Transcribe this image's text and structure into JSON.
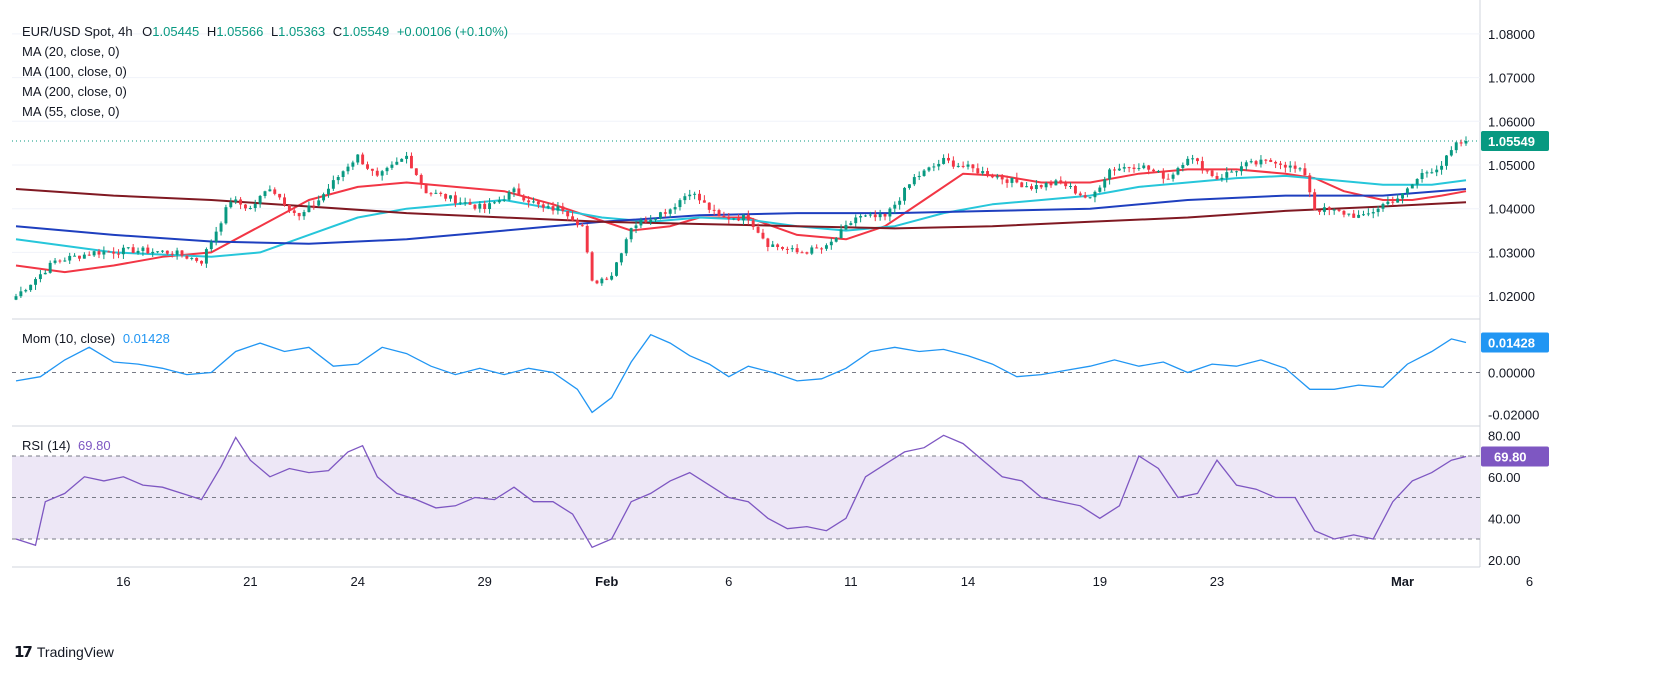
{
  "header": {
    "symbol": "EUR/USD Spot, 4h",
    "ohlc": {
      "o_label": "O",
      "o": "1.05445",
      "h_label": "H",
      "h": "1.05566",
      "l_label": "L",
      "l": "1.05363",
      "c_label": "C",
      "c": "1.05549",
      "change": "+0.00106 (+0.10%)"
    },
    "ma_legend": [
      "MA (20, close, 0)",
      "MA (100, close, 0)",
      "MA (200, close, 0)",
      "MA (55, close, 0)"
    ]
  },
  "colors": {
    "up": "#089981",
    "down": "#f23645",
    "ma20": "#f23645",
    "ma55": "#26c6da",
    "ma100": "#1e3fbf",
    "ma200": "#801922",
    "momentum": "#2196f3",
    "rsi": "#7e57c2",
    "rsi_band": "#ede7f6"
  },
  "chart_data": [
    {
      "type": "candlestick",
      "symbol": "EUR/USD Spot",
      "timeframe": "4h",
      "ylim": [
        1.015,
        1.085
      ],
      "y_ticks": [
        "1.02000",
        "1.03000",
        "1.04000",
        "1.05000",
        "1.06000",
        "1.07000",
        "1.08000"
      ],
      "last_price_label": "1.05549",
      "last_price": 1.05549,
      "x_ticks": [
        "16",
        "21",
        "24",
        "29",
        "Feb",
        "6",
        "11",
        "14",
        "19",
        "23",
        "Mar",
        "6"
      ],
      "price_path": [
        [
          0,
          1.02
        ],
        [
          8,
          1.028
        ],
        [
          16,
          1.03
        ],
        [
          24,
          1.0305
        ],
        [
          32,
          1.03
        ],
        [
          38,
          1.028
        ],
        [
          44,
          1.042
        ],
        [
          48,
          1.04
        ],
        [
          52,
          1.045
        ],
        [
          58,
          1.038
        ],
        [
          62,
          1.042
        ],
        [
          68,
          1.05
        ],
        [
          70,
          1.052
        ],
        [
          74,
          1.047
        ],
        [
          80,
          1.052
        ],
        [
          84,
          1.044
        ],
        [
          90,
          1.042
        ],
        [
          96,
          1.04
        ],
        [
          102,
          1.044
        ],
        [
          108,
          1.04
        ],
        [
          112,
          1.04
        ],
        [
          116,
          1.036
        ],
        [
          118,
          1.023
        ],
        [
          122,
          1.025
        ],
        [
          126,
          1.036
        ],
        [
          130,
          1.038
        ],
        [
          134,
          1.04
        ],
        [
          138,
          1.044
        ],
        [
          144,
          1.038
        ],
        [
          150,
          1.038
        ],
        [
          154,
          1.032
        ],
        [
          160,
          1.03
        ],
        [
          166,
          1.031
        ],
        [
          172,
          1.038
        ],
        [
          178,
          1.038
        ],
        [
          184,
          1.047
        ],
        [
          190,
          1.051
        ],
        [
          196,
          1.049
        ],
        [
          202,
          1.047
        ],
        [
          208,
          1.045
        ],
        [
          214,
          1.046
        ],
        [
          220,
          1.042
        ],
        [
          224,
          1.049
        ],
        [
          230,
          1.05
        ],
        [
          236,
          1.047
        ],
        [
          240,
          1.052
        ],
        [
          246,
          1.047
        ],
        [
          252,
          1.05
        ],
        [
          258,
          1.051
        ],
        [
          264,
          1.048
        ],
        [
          266,
          1.04
        ],
        [
          272,
          1.039
        ],
        [
          276,
          1.038
        ],
        [
          280,
          1.041
        ],
        [
          284,
          1.043
        ],
        [
          288,
          1.048
        ],
        [
          292,
          1.05
        ],
        [
          295,
          1.0545
        ],
        [
          297,
          1.0555
        ]
      ],
      "series": [
        {
          "name": "MA (20, close, 0)",
          "values": [
            [
              0,
              1.027
            ],
            [
              10,
              1.0255
            ],
            [
              20,
              1.027
            ],
            [
              30,
              1.029
            ],
            [
              40,
              1.03
            ],
            [
              50,
              1.036
            ],
            [
              60,
              1.042
            ],
            [
              70,
              1.045
            ],
            [
              80,
              1.046
            ],
            [
              90,
              1.045
            ],
            [
              100,
              1.044
            ],
            [
              110,
              1.041
            ],
            [
              118,
              1.038
            ],
            [
              126,
              1.035
            ],
            [
              134,
              1.036
            ],
            [
              140,
              1.038
            ],
            [
              150,
              1.038
            ],
            [
              160,
              1.034
            ],
            [
              170,
              1.033
            ],
            [
              178,
              1.036
            ],
            [
              186,
              1.042
            ],
            [
              194,
              1.048
            ],
            [
              202,
              1.0475
            ],
            [
              210,
              1.046
            ],
            [
              220,
              1.046
            ],
            [
              230,
              1.048
            ],
            [
              240,
              1.049
            ],
            [
              250,
              1.049
            ],
            [
              260,
              1.048
            ],
            [
              266,
              1.047
            ],
            [
              272,
              1.044
            ],
            [
              280,
              1.042
            ],
            [
              286,
              1.042
            ],
            [
              292,
              1.043
            ],
            [
              297,
              1.044
            ]
          ]
        },
        {
          "name": "MA (55, close, 0)",
          "values": [
            [
              0,
              1.033
            ],
            [
              20,
              1.03
            ],
            [
              40,
              1.029
            ],
            [
              50,
              1.03
            ],
            [
              60,
              1.034
            ],
            [
              70,
              1.038
            ],
            [
              80,
              1.04
            ],
            [
              90,
              1.041
            ],
            [
              100,
              1.042
            ],
            [
              110,
              1.04
            ],
            [
              120,
              1.038
            ],
            [
              130,
              1.037
            ],
            [
              140,
              1.038
            ],
            [
              150,
              1.0375
            ],
            [
              160,
              1.036
            ],
            [
              170,
              1.035
            ],
            [
              180,
              1.036
            ],
            [
              190,
              1.039
            ],
            [
              200,
              1.041
            ],
            [
              210,
              1.042
            ],
            [
              220,
              1.043
            ],
            [
              230,
              1.045
            ],
            [
              240,
              1.046
            ],
            [
              250,
              1.047
            ],
            [
              260,
              1.0475
            ],
            [
              270,
              1.0465
            ],
            [
              280,
              1.0455
            ],
            [
              290,
              1.0455
            ],
            [
              297,
              1.0465
            ]
          ]
        },
        {
          "name": "MA (100, close, 0)",
          "values": [
            [
              0,
              1.036
            ],
            [
              20,
              1.034
            ],
            [
              40,
              1.0325
            ],
            [
              60,
              1.032
            ],
            [
              80,
              1.033
            ],
            [
              100,
              1.035
            ],
            [
              120,
              1.037
            ],
            [
              140,
              1.0385
            ],
            [
              160,
              1.039
            ],
            [
              180,
              1.039
            ],
            [
              200,
              1.0395
            ],
            [
              220,
              1.04
            ],
            [
              240,
              1.042
            ],
            [
              260,
              1.043
            ],
            [
              280,
              1.043
            ],
            [
              297,
              1.0445
            ]
          ]
        },
        {
          "name": "MA (200, close, 0)",
          "values": [
            [
              0,
              1.0445
            ],
            [
              20,
              1.043
            ],
            [
              40,
              1.042
            ],
            [
              60,
              1.0405
            ],
            [
              80,
              1.039
            ],
            [
              100,
              1.038
            ],
            [
              120,
              1.037
            ],
            [
              140,
              1.0365
            ],
            [
              160,
              1.036
            ],
            [
              180,
              1.0355
            ],
            [
              200,
              1.036
            ],
            [
              220,
              1.037
            ],
            [
              240,
              1.038
            ],
            [
              260,
              1.0395
            ],
            [
              280,
              1.0405
            ],
            [
              297,
              1.0415
            ]
          ]
        }
      ]
    },
    {
      "type": "line",
      "name": "Mom (10, close)",
      "value_label": "0.01428",
      "ylim": [
        -0.025,
        0.025
      ],
      "y_ticks": [
        "-0.02000",
        "0.00000"
      ],
      "reference_line": 0,
      "values": [
        [
          0,
          -0.004
        ],
        [
          5,
          -0.002
        ],
        [
          10,
          0.006
        ],
        [
          15,
          0.012
        ],
        [
          20,
          0.005
        ],
        [
          25,
          0.004
        ],
        [
          30,
          0.002
        ],
        [
          35,
          -0.001
        ],
        [
          40,
          0.0
        ],
        [
          45,
          0.01
        ],
        [
          50,
          0.014
        ],
        [
          55,
          0.01
        ],
        [
          60,
          0.012
        ],
        [
          65,
          0.003
        ],
        [
          70,
          0.004
        ],
        [
          75,
          0.012
        ],
        [
          80,
          0.009
        ],
        [
          85,
          0.003
        ],
        [
          90,
          -0.001
        ],
        [
          95,
          0.002
        ],
        [
          100,
          -0.001
        ],
        [
          105,
          0.002
        ],
        [
          110,
          0.0
        ],
        [
          115,
          -0.008
        ],
        [
          118,
          -0.019
        ],
        [
          122,
          -0.012
        ],
        [
          126,
          0.005
        ],
        [
          130,
          0.018
        ],
        [
          134,
          0.014
        ],
        [
          138,
          0.008
        ],
        [
          142,
          0.004
        ],
        [
          146,
          -0.002
        ],
        [
          150,
          0.003
        ],
        [
          155,
          0.0
        ],
        [
          160,
          -0.004
        ],
        [
          165,
          -0.003
        ],
        [
          170,
          0.002
        ],
        [
          175,
          0.01
        ],
        [
          180,
          0.012
        ],
        [
          185,
          0.01
        ],
        [
          190,
          0.011
        ],
        [
          195,
          0.008
        ],
        [
          200,
          0.004
        ],
        [
          205,
          -0.002
        ],
        [
          210,
          -0.001
        ],
        [
          215,
          0.001
        ],
        [
          220,
          0.003
        ],
        [
          225,
          0.006
        ],
        [
          230,
          0.003
        ],
        [
          235,
          0.005
        ],
        [
          240,
          0.0
        ],
        [
          245,
          0.004
        ],
        [
          250,
          0.003
        ],
        [
          255,
          0.006
        ],
        [
          260,
          0.002
        ],
        [
          265,
          -0.008
        ],
        [
          270,
          -0.008
        ],
        [
          275,
          -0.006
        ],
        [
          280,
          -0.007
        ],
        [
          285,
          0.004
        ],
        [
          290,
          0.01
        ],
        [
          294,
          0.016
        ],
        [
          297,
          0.01428
        ]
      ]
    },
    {
      "type": "line",
      "name": "RSI (14)",
      "value_label": "69.80",
      "ylim": [
        17,
        84
      ],
      "y_ticks": [
        "20.00",
        "40.00",
        "60.00",
        "80.00"
      ],
      "levels": [
        30,
        50,
        70
      ],
      "band": [
        30,
        70
      ],
      "values": [
        [
          0,
          30
        ],
        [
          4,
          27
        ],
        [
          6,
          48
        ],
        [
          10,
          52
        ],
        [
          14,
          60
        ],
        [
          18,
          58
        ],
        [
          22,
          60
        ],
        [
          26,
          56
        ],
        [
          30,
          55
        ],
        [
          34,
          52
        ],
        [
          38,
          49
        ],
        [
          42,
          65
        ],
        [
          45,
          79
        ],
        [
          48,
          68
        ],
        [
          52,
          60
        ],
        [
          56,
          64
        ],
        [
          60,
          62
        ],
        [
          64,
          63
        ],
        [
          68,
          72
        ],
        [
          71,
          75
        ],
        [
          74,
          60
        ],
        [
          78,
          52
        ],
        [
          82,
          49
        ],
        [
          86,
          45
        ],
        [
          90,
          46
        ],
        [
          94,
          50
        ],
        [
          98,
          49
        ],
        [
          102,
          55
        ],
        [
          106,
          48
        ],
        [
          110,
          48
        ],
        [
          114,
          42
        ],
        [
          118,
          26
        ],
        [
          122,
          30
        ],
        [
          126,
          48
        ],
        [
          130,
          52
        ],
        [
          134,
          58
        ],
        [
          138,
          62
        ],
        [
          142,
          56
        ],
        [
          146,
          50
        ],
        [
          150,
          48
        ],
        [
          154,
          40
        ],
        [
          158,
          35
        ],
        [
          162,
          36
        ],
        [
          166,
          34
        ],
        [
          170,
          40
        ],
        [
          174,
          60
        ],
        [
          178,
          66
        ],
        [
          182,
          72
        ],
        [
          186,
          74
        ],
        [
          190,
          80
        ],
        [
          194,
          76
        ],
        [
          198,
          68
        ],
        [
          202,
          60
        ],
        [
          206,
          58
        ],
        [
          210,
          50
        ],
        [
          214,
          48
        ],
        [
          218,
          46
        ],
        [
          222,
          40
        ],
        [
          226,
          46
        ],
        [
          230,
          70
        ],
        [
          234,
          64
        ],
        [
          238,
          50
        ],
        [
          242,
          52
        ],
        [
          246,
          68
        ],
        [
          250,
          56
        ],
        [
          254,
          54
        ],
        [
          258,
          50
        ],
        [
          262,
          50
        ],
        [
          266,
          34
        ],
        [
          270,
          30
        ],
        [
          274,
          32
        ],
        [
          278,
          30
        ],
        [
          282,
          48
        ],
        [
          286,
          58
        ],
        [
          290,
          62
        ],
        [
          294,
          68
        ],
        [
          297,
          69.8
        ]
      ]
    }
  ],
  "indicators": {
    "mom_label": "Mom (10, close)",
    "mom_value": "0.01428",
    "rsi_label": "RSI (14)",
    "rsi_value": "69.80"
  },
  "branding": {
    "name": "TradingView"
  }
}
